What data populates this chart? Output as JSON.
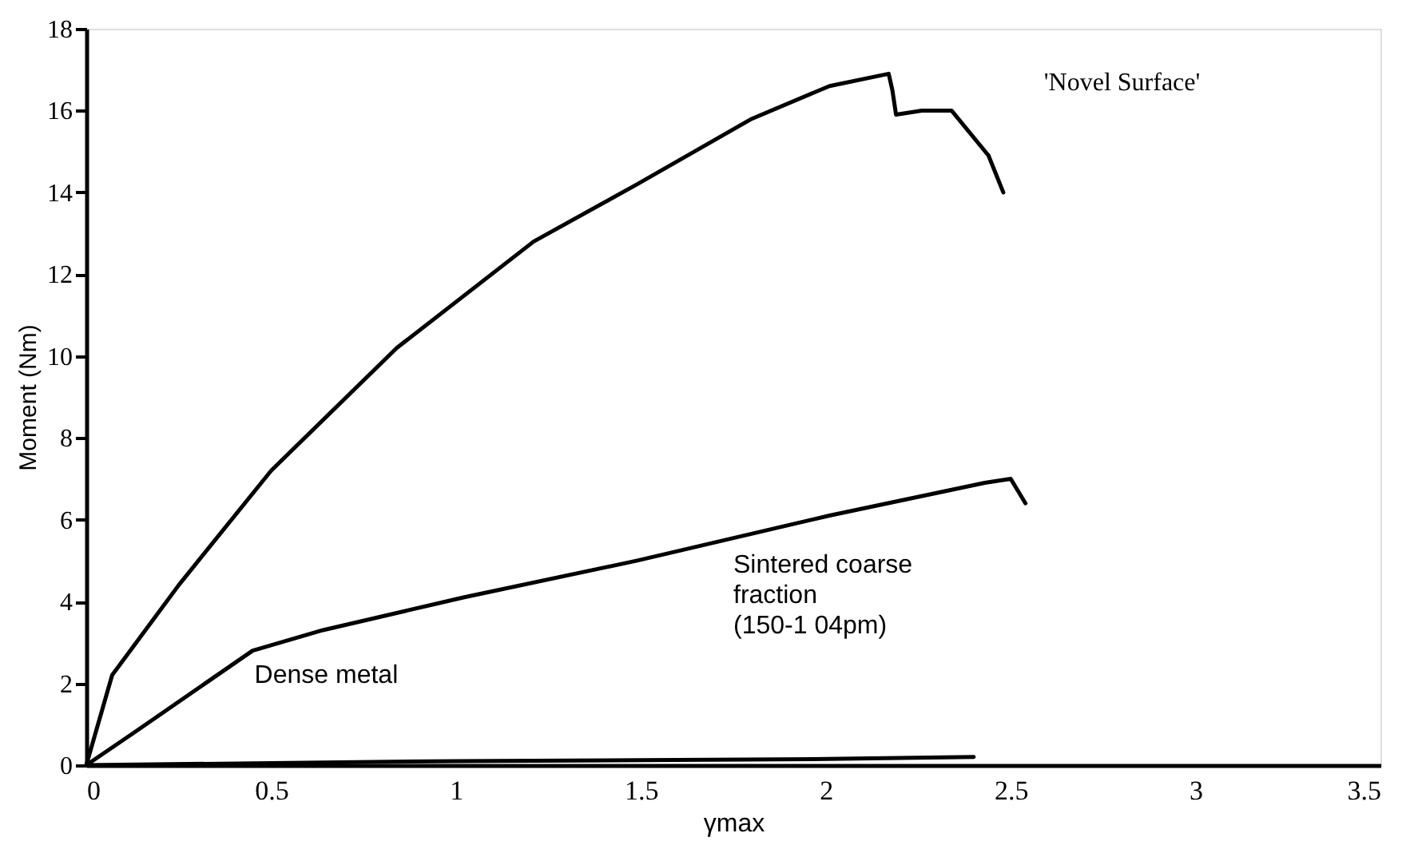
{
  "chart_data": {
    "type": "line",
    "xlabel": "γmax",
    "ylabel": "Moment (Nm)",
    "xlim": [
      0,
      3.5
    ],
    "xticks": [
      0,
      0.5,
      1,
      1.5,
      2,
      2.5,
      3,
      3.5
    ],
    "ylim": [
      0,
      18
    ],
    "yticks": [
      0,
      2,
      4,
      6,
      8,
      10,
      12,
      14,
      16,
      18
    ],
    "grid": false,
    "marker": "none",
    "line_style": "solid",
    "series": [
      {
        "color": "#000000",
        "x": [
          0,
          0.07,
          0.25,
          0.5,
          0.84,
          1.21,
          1.49,
          1.8,
          2.01,
          2.17,
          2.18,
          2.19,
          2.26,
          2.34,
          2.44,
          2.48
        ],
        "values": [
          0,
          2.2,
          4.4,
          7.2,
          10.2,
          12.8,
          14.2,
          15.8,
          16.6,
          16.9,
          16.5,
          15.9,
          16.0,
          16.0,
          14.9,
          14.0
        ]
      },
      {
        "color": "#000000",
        "x": [
          0,
          0.13,
          0.45,
          0.64,
          1.02,
          1.49,
          2.01,
          2.43,
          2.5,
          2.54
        ],
        "values": [
          0,
          0.8,
          2.8,
          3.3,
          4.1,
          5.0,
          6.1,
          6.9,
          7.0,
          6.4
        ]
      },
      {
        "color": "#000000",
        "x": [
          0,
          0.5,
          1,
          1.5,
          2,
          2.4
        ],
        "values": [
          0,
          0.05,
          0.1,
          0.12,
          0.15,
          0.2
        ]
      }
    ],
    "annotations": [
      "'Novel Surface'",
      "Sintered coarse\nfraction\n(150-1 04pm)",
      "Dense metal"
    ]
  }
}
